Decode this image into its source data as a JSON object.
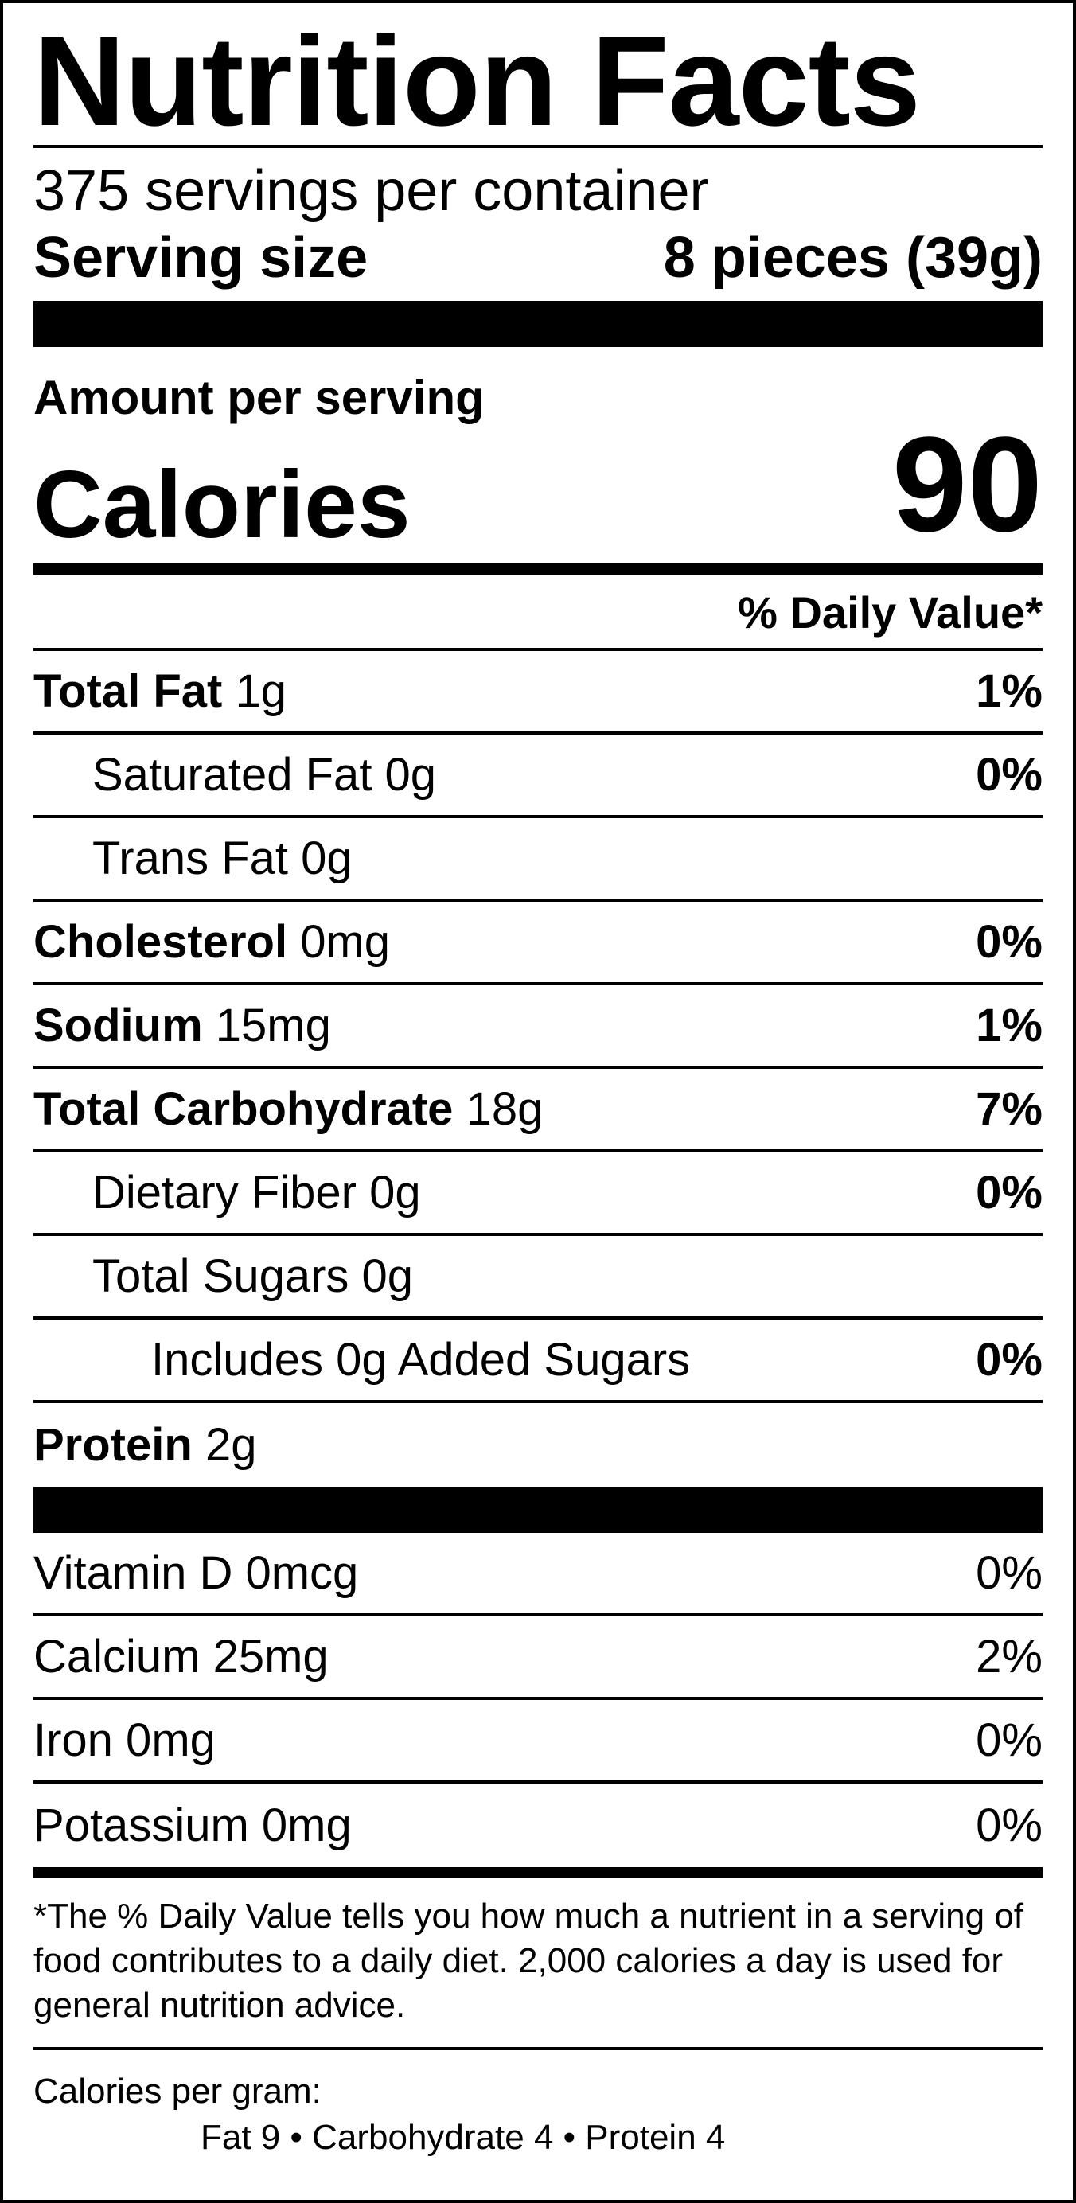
{
  "title": "Nutrition Facts",
  "servings_per_container": "375 servings per container",
  "serving_size": {
    "label": "Serving size",
    "value": "8 pieces (39g)"
  },
  "amount_per_serving": "Amount per serving",
  "calories": {
    "label": "Calories",
    "value": "90"
  },
  "daily_value_header": "% Daily Value*",
  "nutrients": [
    {
      "name": "Total Fat",
      "amount": "1g",
      "dv": "1%"
    },
    {
      "name": "Saturated Fat 0g",
      "dv": "0%"
    },
    {
      "name": "Trans Fat 0g",
      "dv": ""
    },
    {
      "name": "Cholesterol",
      "amount": "0mg",
      "dv": "0%"
    },
    {
      "name": "Sodium",
      "amount": "15mg",
      "dv": "1%"
    },
    {
      "name": "Total Carbohydrate",
      "amount": "18g",
      "dv": "7%"
    },
    {
      "name": "Dietary Fiber 0g",
      "dv": "0%"
    },
    {
      "name": "Total Sugars 0g",
      "dv": ""
    },
    {
      "name": "Includes 0g Added Sugars",
      "dv": "0%"
    },
    {
      "name": "Protein",
      "amount": "2g",
      "dv": ""
    }
  ],
  "vitamins": [
    {
      "name": "Vitamin D 0mcg",
      "dv": "0%"
    },
    {
      "name": "Calcium 25mg",
      "dv": "2%"
    },
    {
      "name": "Iron 0mg",
      "dv": "0%"
    },
    {
      "name": "Potassium 0mg",
      "dv": "0%"
    }
  ],
  "footnote": "*The % Daily Value tells you how much a nutrient in a serving of food contributes to a daily diet. 2,000 calories a day is used for general nutrition advice.",
  "calories_per_gram": {
    "label": "Calories per gram:",
    "line": "Fat 9   •   Carbohydrate 4   •   Protein 4"
  }
}
